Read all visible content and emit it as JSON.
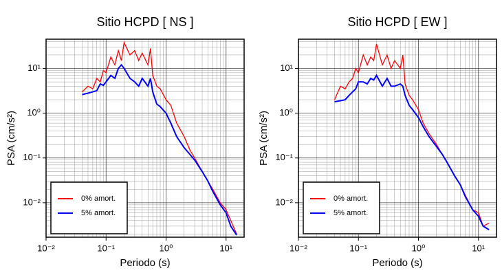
{
  "chart_data": [
    {
      "type": "line",
      "title": "Sitio HCPD [ NS ]",
      "xlabel": "Periodo (s)",
      "ylabel": "PSA (cm/s²)",
      "log_x": true,
      "log_y": true,
      "grid": true,
      "legend": "lower left",
      "xlim": [
        0.01,
        20
      ],
      "ylim": [
        0.0017,
        45
      ],
      "xticks": [
        {
          "value": 0.01,
          "label": "10⁻²"
        },
        {
          "value": 0.1,
          "label": "10⁻¹"
        },
        {
          "value": 1,
          "label": "10⁰"
        },
        {
          "value": 10,
          "label": "10¹"
        }
      ],
      "yticks": [
        {
          "value": 0.01,
          "label": "10⁻²"
        },
        {
          "value": 0.1,
          "label": "10⁻¹"
        },
        {
          "value": 1,
          "label": "10⁰"
        },
        {
          "value": 10,
          "label": "10¹"
        }
      ],
      "x": [
        0.04,
        0.05,
        0.06,
        0.07,
        0.08,
        0.09,
        0.1,
        0.12,
        0.14,
        0.16,
        0.18,
        0.2,
        0.25,
        0.3,
        0.35,
        0.4,
        0.5,
        0.55,
        0.6,
        0.7,
        0.8,
        1.0,
        1.2,
        1.5,
        2,
        2.5,
        3,
        4,
        5,
        6,
        8,
        10,
        12,
        15
      ],
      "series": [
        {
          "name": "0% amort.",
          "color": "#ff0000",
          "values": [
            3,
            4,
            3.5,
            6,
            5,
            9,
            8,
            18,
            12,
            25,
            15,
            38,
            20,
            25,
            15,
            22,
            12,
            28,
            7,
            4,
            3.5,
            2,
            1.5,
            0.6,
            0.3,
            0.15,
            0.1,
            0.05,
            0.03,
            0.02,
            0.01,
            0.007,
            0.004,
            0.002
          ]
        },
        {
          "name": "5% amort.",
          "color": "#0000ff",
          "values": [
            2.6,
            2.8,
            3,
            3.2,
            4.5,
            4.2,
            5,
            7,
            6,
            10,
            12,
            10,
            6,
            5,
            4,
            6,
            4,
            6,
            3,
            1.6,
            1.4,
            1.0,
            0.6,
            0.3,
            0.17,
            0.12,
            0.09,
            0.05,
            0.03,
            0.018,
            0.009,
            0.006,
            0.003,
            0.0019
          ]
        }
      ]
    },
    {
      "type": "line",
      "title": "Sitio HCPD [ EW ]",
      "xlabel": "Periodo (s)",
      "ylabel": "PSA (cm/s²)",
      "log_x": true,
      "log_y": true,
      "grid": true,
      "legend": "lower left",
      "xlim": [
        0.01,
        20
      ],
      "ylim": [
        0.0017,
        45
      ],
      "xticks": [
        {
          "value": 0.01,
          "label": "10⁻²"
        },
        {
          "value": 0.1,
          "label": "10⁻¹"
        },
        {
          "value": 1,
          "label": "10⁰"
        },
        {
          "value": 10,
          "label": "10¹"
        }
      ],
      "yticks": [
        {
          "value": 0.01,
          "label": "10⁻²"
        },
        {
          "value": 0.1,
          "label": "10⁻¹"
        },
        {
          "value": 1,
          "label": "10⁰"
        },
        {
          "value": 10,
          "label": "10¹"
        }
      ],
      "x": [
        0.04,
        0.05,
        0.06,
        0.07,
        0.08,
        0.09,
        0.1,
        0.12,
        0.14,
        0.16,
        0.18,
        0.2,
        0.25,
        0.3,
        0.35,
        0.4,
        0.5,
        0.55,
        0.6,
        0.7,
        0.8,
        1.0,
        1.2,
        1.5,
        2,
        2.5,
        3,
        4,
        5,
        6,
        8,
        10,
        12,
        15
      ],
      "series": [
        {
          "name": "0% amort.",
          "color": "#ff0000",
          "values": [
            2,
            4,
            3.5,
            5,
            6,
            10,
            8,
            20,
            12,
            18,
            15,
            35,
            12,
            20,
            10,
            15,
            10,
            20,
            4.5,
            2.5,
            2,
            1.2,
            0.6,
            0.35,
            0.2,
            0.12,
            0.08,
            0.04,
            0.025,
            0.015,
            0.007,
            0.006,
            0.003,
            0.0035
          ]
        },
        {
          "name": "5% amort.",
          "color": "#0000ff",
          "values": [
            1.8,
            1.9,
            2,
            2.5,
            3,
            3.5,
            5,
            5,
            4.5,
            6,
            5.5,
            7,
            4,
            6,
            4,
            4,
            4.5,
            4,
            2.5,
            1.5,
            1.2,
            0.8,
            0.5,
            0.3,
            0.18,
            0.12,
            0.08,
            0.04,
            0.025,
            0.014,
            0.007,
            0.005,
            0.003,
            0.0025
          ]
        }
      ]
    }
  ]
}
